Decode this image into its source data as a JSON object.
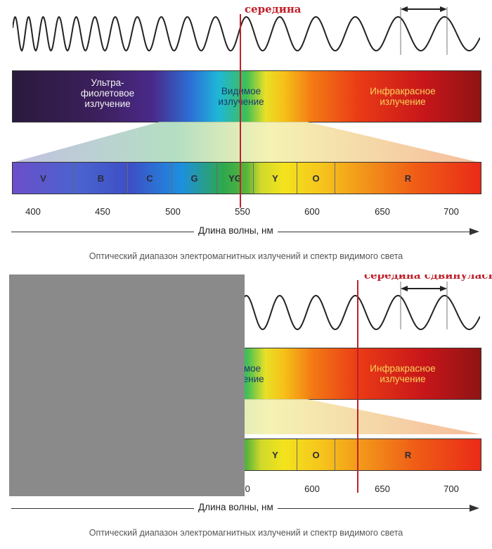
{
  "panels": [
    {
      "band_labels": {
        "uv": "Ультра-\nфиолетовое\nизлучение",
        "visible": "Видимое\nизлучение",
        "ir": "Инфракрасное\nизлучение"
      },
      "cells": [
        "V",
        "B",
        "C",
        "G",
        "YG",
        "Y",
        "O",
        "R"
      ],
      "ticks": [
        "400",
        "450",
        "500",
        "550",
        "600",
        "650",
        "700"
      ],
      "axis_label": "Длина волны, нм",
      "caption": "Оптический диапазон электромагнитных излучений и спектр видимого света",
      "marker_label": "середина"
    },
    {
      "band_labels": {
        "visible": "Видимое\nизлучение",
        "ir": "Инфракрасное\nизлучение"
      },
      "cells": [
        "Y",
        "O",
        "R"
      ],
      "ticks": [
        "550",
        "600",
        "650",
        "700"
      ],
      "axis_label": "Длина волны, нм",
      "caption": "Оптический диапазон электромагнитных излучений и спектр видимого света",
      "marker_label": "середина сдвинулась"
    }
  ],
  "colors": {
    "marker": "#c0202a",
    "occluder": "#8a8a8a"
  }
}
